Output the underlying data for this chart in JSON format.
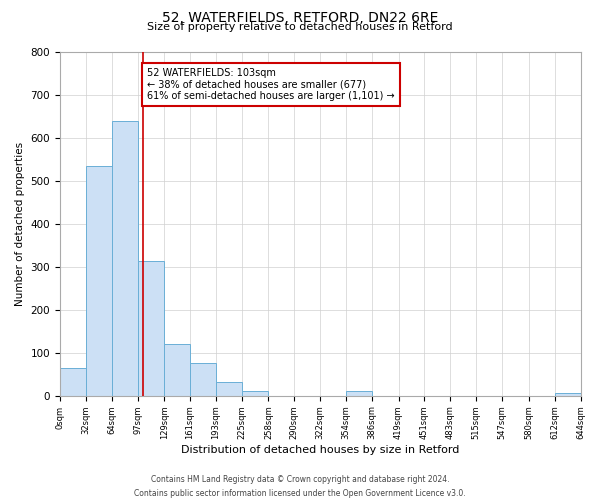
{
  "title": "52, WATERFIELDS, RETFORD, DN22 6RE",
  "subtitle": "Size of property relative to detached houses in Retford",
  "xlabel": "Distribution of detached houses by size in Retford",
  "ylabel": "Number of detached properties",
  "bin_edges": [
    0,
    32,
    64,
    97,
    129,
    161,
    193,
    225,
    258,
    290,
    322,
    354,
    386,
    419,
    451,
    483,
    515,
    547,
    580,
    612,
    644
  ],
  "bin_counts": [
    65,
    535,
    638,
    313,
    120,
    75,
    33,
    12,
    0,
    0,
    0,
    10,
    0,
    0,
    0,
    0,
    0,
    0,
    0,
    6
  ],
  "bar_face_color": "#cce0f5",
  "bar_edge_color": "#6aafd6",
  "vline_x": 103,
  "vline_color": "#cc0000",
  "annotation_text": "52 WATERFIELDS: 103sqm\n← 38% of detached houses are smaller (677)\n61% of semi-detached houses are larger (1,101) →",
  "annotation_box_edge_color": "#cc0000",
  "annotation_box_face_color": "#ffffff",
  "ylim": [
    0,
    800
  ],
  "xlim_min": 0,
  "xlim_max": 644,
  "tick_labels": [
    "0sqm",
    "32sqm",
    "64sqm",
    "97sqm",
    "129sqm",
    "161sqm",
    "193sqm",
    "225sqm",
    "258sqm",
    "290sqm",
    "322sqm",
    "354sqm",
    "386sqm",
    "419sqm",
    "451sqm",
    "483sqm",
    "515sqm",
    "547sqm",
    "580sqm",
    "612sqm",
    "644sqm"
  ],
  "footer_line1": "Contains HM Land Registry data © Crown copyright and database right 2024.",
  "footer_line2": "Contains public sector information licensed under the Open Government Licence v3.0.",
  "background_color": "#ffffff",
  "grid_color": "#d0d0d0",
  "title_fontsize": 10,
  "subtitle_fontsize": 8,
  "ylabel_fontsize": 7.5,
  "xlabel_fontsize": 8,
  "tick_fontsize": 6,
  "ytick_fontsize": 7.5,
  "annotation_fontsize": 7,
  "footer_fontsize": 5.5
}
